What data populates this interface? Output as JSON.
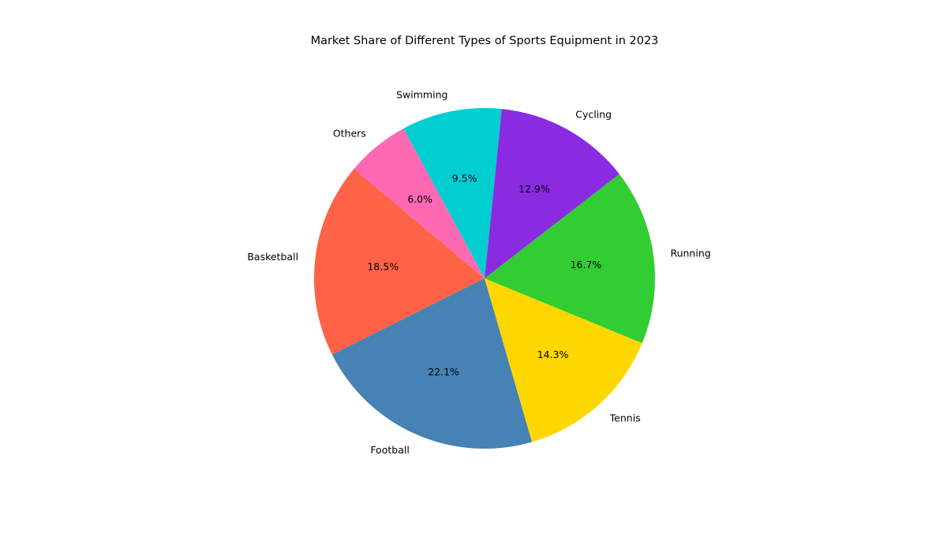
{
  "chart_data": {
    "type": "pie",
    "title": "Market Share of Different Types of Sports Equipment in 2023",
    "start_angle_deg": 140,
    "direction": "counterclockwise",
    "slices": [
      {
        "label": "Basketball",
        "value": 18.5,
        "pct_label": "18.5%",
        "color": "#FF6347"
      },
      {
        "label": "Football",
        "value": 22.1,
        "pct_label": "22.1%",
        "color": "#4682B4"
      },
      {
        "label": "Tennis",
        "value": 14.3,
        "pct_label": "14.3%",
        "color": "#FFD700"
      },
      {
        "label": "Running",
        "value": 16.7,
        "pct_label": "16.7%",
        "color": "#32CD32"
      },
      {
        "label": "Cycling",
        "value": 12.9,
        "pct_label": "12.9%",
        "color": "#8A2BE2"
      },
      {
        "label": "Swimming",
        "value": 9.5,
        "pct_label": "9.5%",
        "color": "#00CED1"
      },
      {
        "label": "Others",
        "value": 6.0,
        "pct_label": "6.0%",
        "color": "#FF69B4"
      }
    ]
  }
}
